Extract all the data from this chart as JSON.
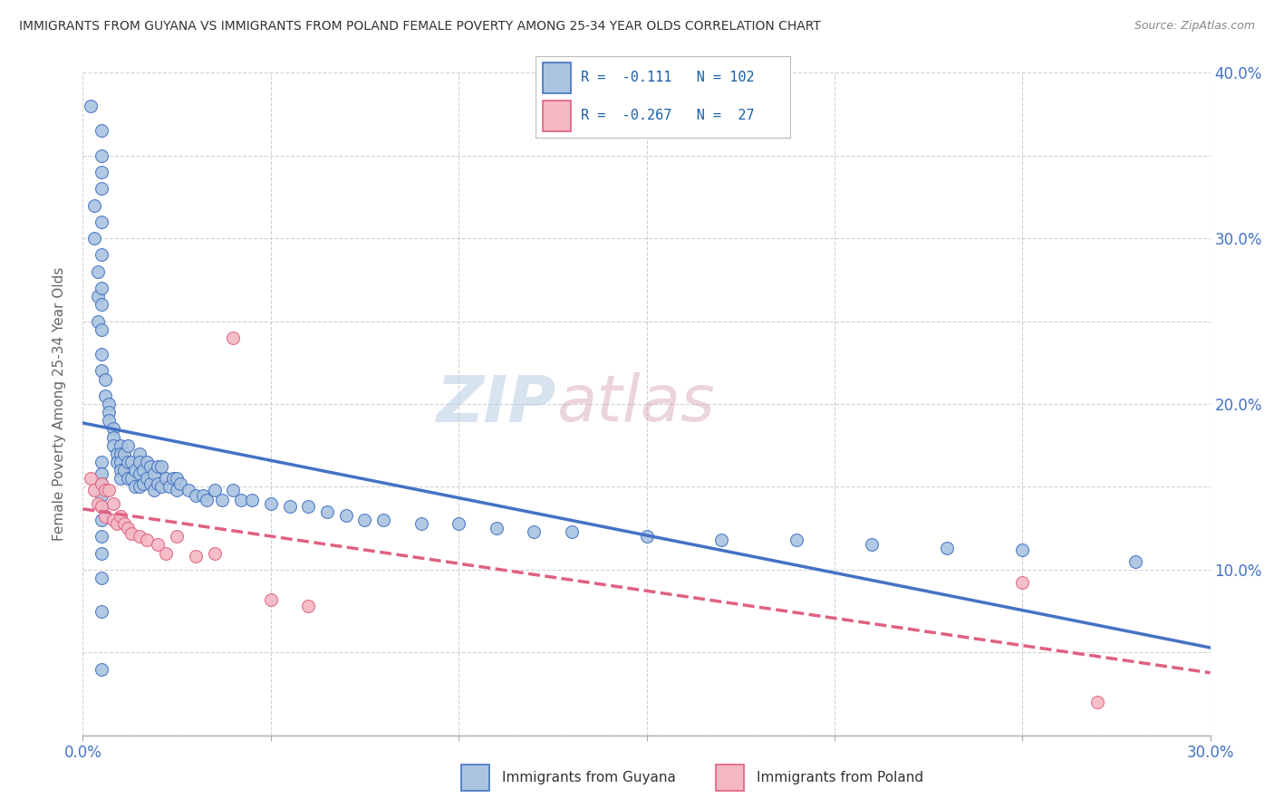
{
  "title": "IMMIGRANTS FROM GUYANA VS IMMIGRANTS FROM POLAND FEMALE POVERTY AMONG 25-34 YEAR OLDS CORRELATION CHART",
  "source": "Source: ZipAtlas.com",
  "ylabel": "Female Poverty Among 25-34 Year Olds",
  "xmin": 0.0,
  "xmax": 0.3,
  "ymin": 0.0,
  "ymax": 0.4,
  "guyana_R": -0.111,
  "guyana_N": 102,
  "poland_R": -0.267,
  "poland_N": 27,
  "guyana_color": "#aac4e0",
  "poland_color": "#f4b8c4",
  "guyana_line_color": "#4472c4",
  "poland_line_color": "#e06080",
  "watermark_zip": "ZIP",
  "watermark_atlas": "atlas",
  "background_color": "#ffffff",
  "guyana_scatter_x": [
    0.002,
    0.003,
    0.003,
    0.004,
    0.004,
    0.004,
    0.005,
    0.005,
    0.005,
    0.005,
    0.005,
    0.005,
    0.005,
    0.005,
    0.005,
    0.005,
    0.005,
    0.006,
    0.006,
    0.007,
    0.007,
    0.007,
    0.008,
    0.008,
    0.008,
    0.009,
    0.009,
    0.01,
    0.01,
    0.01,
    0.01,
    0.01,
    0.011,
    0.011,
    0.012,
    0.012,
    0.012,
    0.013,
    0.013,
    0.014,
    0.014,
    0.015,
    0.015,
    0.015,
    0.015,
    0.016,
    0.016,
    0.017,
    0.017,
    0.018,
    0.018,
    0.019,
    0.019,
    0.02,
    0.02,
    0.021,
    0.021,
    0.022,
    0.023,
    0.024,
    0.025,
    0.025,
    0.026,
    0.028,
    0.03,
    0.032,
    0.033,
    0.035,
    0.037,
    0.04,
    0.042,
    0.045,
    0.05,
    0.055,
    0.06,
    0.065,
    0.07,
    0.075,
    0.08,
    0.09,
    0.1,
    0.11,
    0.12,
    0.13,
    0.15,
    0.17,
    0.19,
    0.21,
    0.23,
    0.25,
    0.005,
    0.005,
    0.005,
    0.005,
    0.005,
    0.005,
    0.005,
    0.005,
    0.005,
    0.005,
    0.005,
    0.28
  ],
  "guyana_scatter_y": [
    0.38,
    0.32,
    0.3,
    0.28,
    0.265,
    0.25,
    0.365,
    0.35,
    0.34,
    0.33,
    0.31,
    0.29,
    0.27,
    0.26,
    0.245,
    0.23,
    0.22,
    0.215,
    0.205,
    0.2,
    0.195,
    0.19,
    0.185,
    0.18,
    0.175,
    0.17,
    0.165,
    0.175,
    0.17,
    0.165,
    0.16,
    0.155,
    0.17,
    0.16,
    0.175,
    0.165,
    0.155,
    0.165,
    0.155,
    0.16,
    0.15,
    0.17,
    0.165,
    0.158,
    0.15,
    0.16,
    0.152,
    0.165,
    0.155,
    0.162,
    0.152,
    0.158,
    0.148,
    0.162,
    0.152,
    0.162,
    0.15,
    0.155,
    0.15,
    0.155,
    0.155,
    0.148,
    0.152,
    0.148,
    0.145,
    0.145,
    0.142,
    0.148,
    0.142,
    0.148,
    0.142,
    0.142,
    0.14,
    0.138,
    0.138,
    0.135,
    0.133,
    0.13,
    0.13,
    0.128,
    0.128,
    0.125,
    0.123,
    0.123,
    0.12,
    0.118,
    0.118,
    0.115,
    0.113,
    0.112,
    0.165,
    0.158,
    0.152,
    0.145,
    0.138,
    0.13,
    0.12,
    0.11,
    0.095,
    0.075,
    0.04,
    0.105
  ],
  "poland_scatter_x": [
    0.002,
    0.003,
    0.004,
    0.005,
    0.005,
    0.006,
    0.006,
    0.007,
    0.008,
    0.008,
    0.009,
    0.01,
    0.011,
    0.012,
    0.013,
    0.015,
    0.017,
    0.02,
    0.022,
    0.025,
    0.03,
    0.035,
    0.04,
    0.05,
    0.06,
    0.25,
    0.27
  ],
  "poland_scatter_y": [
    0.155,
    0.148,
    0.14,
    0.152,
    0.138,
    0.148,
    0.132,
    0.148,
    0.14,
    0.13,
    0.128,
    0.132,
    0.128,
    0.125,
    0.122,
    0.12,
    0.118,
    0.115,
    0.11,
    0.12,
    0.108,
    0.11,
    0.24,
    0.082,
    0.078,
    0.092,
    0.02
  ]
}
